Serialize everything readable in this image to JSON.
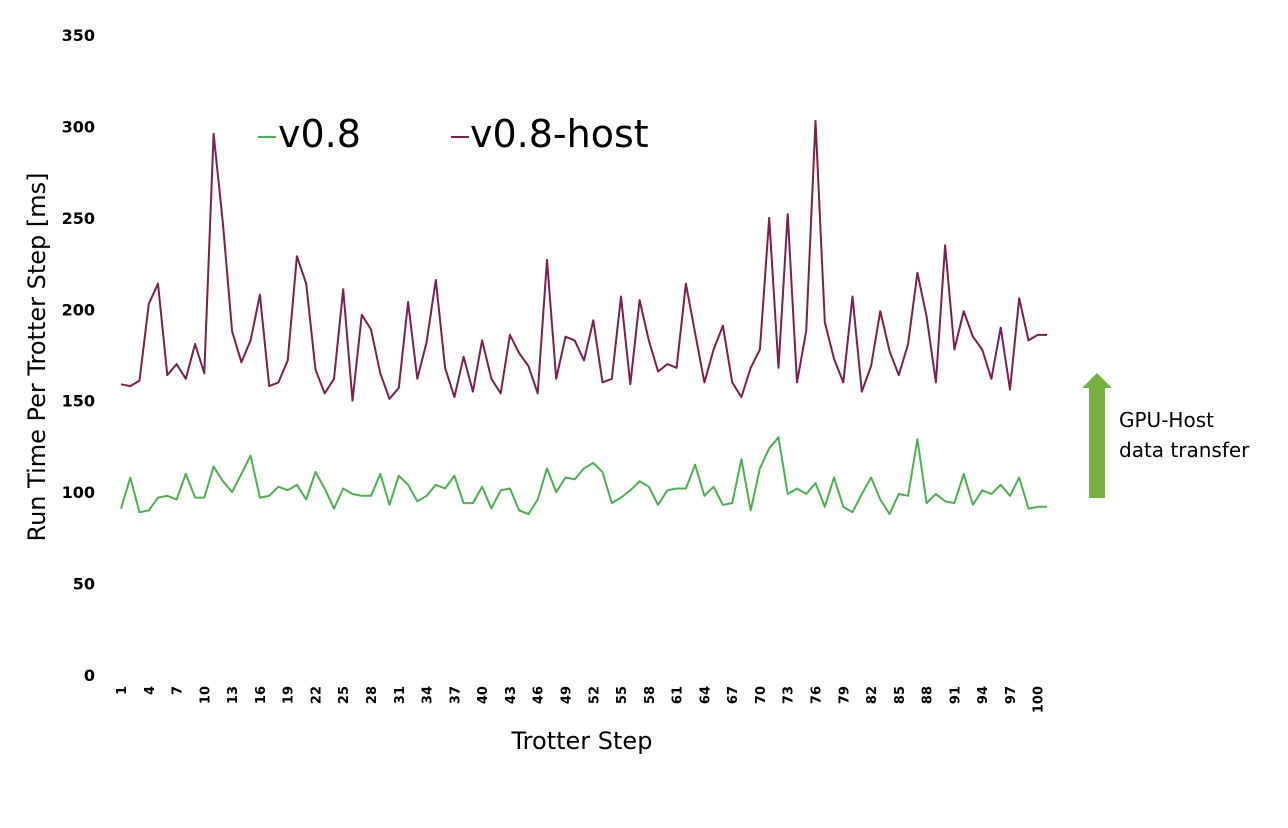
{
  "chart_data": {
    "type": "line",
    "title": "",
    "xlabel": "Trotter Step",
    "ylabel": "Run Time Per Trotter Step [ms]",
    "ylim": [
      0,
      350
    ],
    "yticks": [
      0,
      50,
      100,
      150,
      200,
      250,
      300,
      350
    ],
    "xticks": [
      1,
      4,
      7,
      10,
      13,
      16,
      19,
      22,
      25,
      28,
      31,
      34,
      37,
      40,
      43,
      46,
      49,
      52,
      55,
      58,
      61,
      64,
      67,
      70,
      73,
      76,
      79,
      82,
      85,
      88,
      91,
      94,
      97,
      100
    ],
    "grid": false,
    "legend_position": "top",
    "x": [
      1,
      2,
      3,
      4,
      5,
      6,
      7,
      8,
      9,
      10,
      11,
      12,
      13,
      14,
      15,
      16,
      17,
      18,
      19,
      20,
      21,
      22,
      23,
      24,
      25,
      26,
      27,
      28,
      29,
      30,
      31,
      32,
      33,
      34,
      35,
      36,
      37,
      38,
      39,
      40,
      41,
      42,
      43,
      44,
      45,
      46,
      47,
      48,
      49,
      50,
      51,
      52,
      53,
      54,
      55,
      56,
      57,
      58,
      59,
      60,
      61,
      62,
      63,
      64,
      65,
      66,
      67,
      68,
      69,
      70,
      71,
      72,
      73,
      74,
      75,
      76,
      77,
      78,
      79,
      80,
      81,
      82,
      83,
      84,
      85,
      86,
      87,
      88,
      89,
      90,
      91,
      92,
      93,
      94,
      95,
      96,
      97,
      98,
      99,
      100,
      101
    ],
    "series": [
      {
        "name": "v0.8",
        "color": "#4caf50",
        "values": [
          91,
          108,
          89,
          90,
          97,
          98,
          96,
          110,
          97,
          97,
          114,
          106,
          100,
          110,
          120,
          97,
          98,
          103,
          101,
          104,
          96,
          111,
          102,
          91,
          102,
          99,
          98,
          98,
          110,
          93,
          109,
          104,
          95,
          98,
          104,
          102,
          109,
          94,
          94,
          103,
          91,
          101,
          102,
          90,
          88,
          96,
          113,
          100,
          108,
          107,
          113,
          116,
          111,
          94,
          97,
          101,
          106,
          103,
          93,
          101,
          102,
          102,
          115,
          98,
          103,
          93,
          94,
          118,
          90,
          113,
          124,
          130,
          99,
          102,
          99,
          105,
          92,
          108,
          92,
          89,
          99,
          108,
          96,
          88,
          99,
          98,
          129,
          94,
          99,
          95,
          94,
          110,
          93,
          101,
          99,
          104,
          98,
          108,
          91,
          92,
          92
        ],
        "approximate": true
      },
      {
        "name": "v0.8-host",
        "color": "#7b1f4f",
        "values": [
          159,
          158,
          161,
          203,
          214,
          164,
          170,
          162,
          181,
          165,
          296,
          247,
          188,
          171,
          183,
          208,
          158,
          160,
          172,
          229,
          214,
          167,
          154,
          162,
          211,
          150,
          197,
          189,
          165,
          151,
          157,
          204,
          162,
          182,
          216,
          168,
          152,
          174,
          155,
          183,
          162,
          154,
          186,
          176,
          169,
          154,
          227,
          162,
          185,
          183,
          172,
          194,
          160,
          162,
          207,
          159,
          205,
          183,
          166,
          170,
          168,
          214,
          187,
          160,
          178,
          191,
          160,
          152,
          168,
          178,
          250,
          168,
          252,
          160,
          188,
          303,
          193,
          173,
          160,
          207,
          155,
          169,
          199,
          177,
          164,
          181,
          220,
          196,
          160,
          235,
          178,
          199,
          185,
          178,
          162,
          190,
          156,
          206,
          183,
          186,
          186
        ],
        "approximate": true
      }
    ],
    "annotation": {
      "text_line1": "GPU-Host",
      "text_line2": "data transfer",
      "arrow_color": "#76b041",
      "arrow_direction": "up"
    }
  },
  "legend": {
    "v08_label": "v0.8",
    "v08_host_label": "v0.8-host"
  }
}
